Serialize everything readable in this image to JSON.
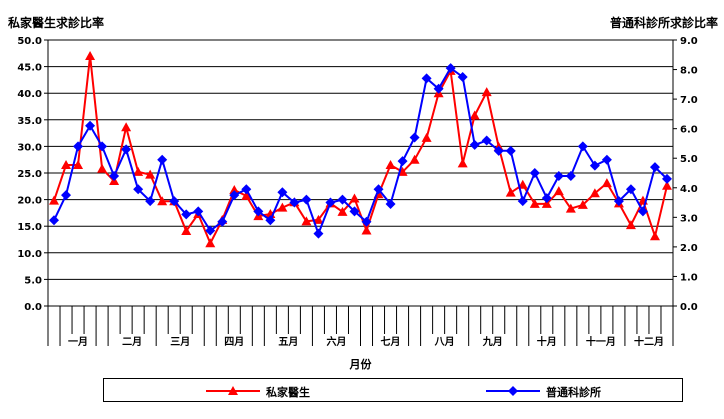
{
  "chart_data": {
    "type": "line",
    "title_left": "私家醫生求診比率",
    "title_right": "普通科診所求診比率",
    "xlabel": "月份",
    "months": [
      "一月",
      "二月",
      "三月",
      "四月",
      "五月",
      "六月",
      "七月",
      "八月",
      "九月",
      "十月",
      "十一月",
      "十二月"
    ],
    "y_left": {
      "lim": [
        0,
        50
      ],
      "ticks": [
        "0.0",
        "5.0",
        "10.0",
        "15.0",
        "20.0",
        "25.0",
        "30.0",
        "35.0",
        "40.0",
        "45.0",
        "50.0"
      ]
    },
    "y_right": {
      "lim": [
        0,
        9
      ],
      "ticks": [
        "0.0",
        "1.0",
        "2.0",
        "3.0",
        "4.0",
        "5.0",
        "6.0",
        "7.0",
        "8.0",
        "9.0"
      ]
    },
    "series": [
      {
        "name": "私家醫生",
        "axis": "left",
        "color": "#ff0000",
        "marker": "triangle",
        "values": [
          19.8,
          26.5,
          26.5,
          47,
          25.8,
          23.5,
          33.6,
          25.2,
          24.7,
          19.7,
          19.7,
          14.1,
          17.3,
          11.8,
          16.2,
          21.8,
          20.7,
          16.9,
          17.3,
          18.5,
          19.5,
          15.9,
          16.2,
          19.3,
          17.7,
          20.2,
          14.2,
          21,
          26.5,
          25.2,
          27.5,
          31.6,
          40,
          44.2,
          26.8,
          35.8,
          40.2,
          29.9,
          21.3,
          22.8,
          19.2,
          19.2,
          21.6,
          18.3,
          19,
          21.2,
          23.1,
          19.3,
          15.2,
          19.8,
          13.1,
          22.6
        ]
      },
      {
        "name": "普通科診所",
        "axis": "right",
        "color": "#0000ff",
        "marker": "diamond",
        "values": [
          2.9,
          3.75,
          5.4,
          6.1,
          5.4,
          4.4,
          5.3,
          3.95,
          3.55,
          4.95,
          3.55,
          3.1,
          3.2,
          2.55,
          2.85,
          3.75,
          3.95,
          3.2,
          2.9,
          3.85,
          3.5,
          3.6,
          2.45,
          3.5,
          3.6,
          3.2,
          2.85,
          3.95,
          3.45,
          4.9,
          5.7,
          7.7,
          7.35,
          8.05,
          7.75,
          5.45,
          5.6,
          5.25,
          5.25,
          3.55,
          4.5,
          3.65,
          4.4,
          4.4,
          5.4,
          4.75,
          4.95,
          3.55,
          3.95,
          3.2,
          4.7,
          4.3
        ]
      }
    ],
    "legend": "bottom",
    "grid": "horizontal"
  }
}
